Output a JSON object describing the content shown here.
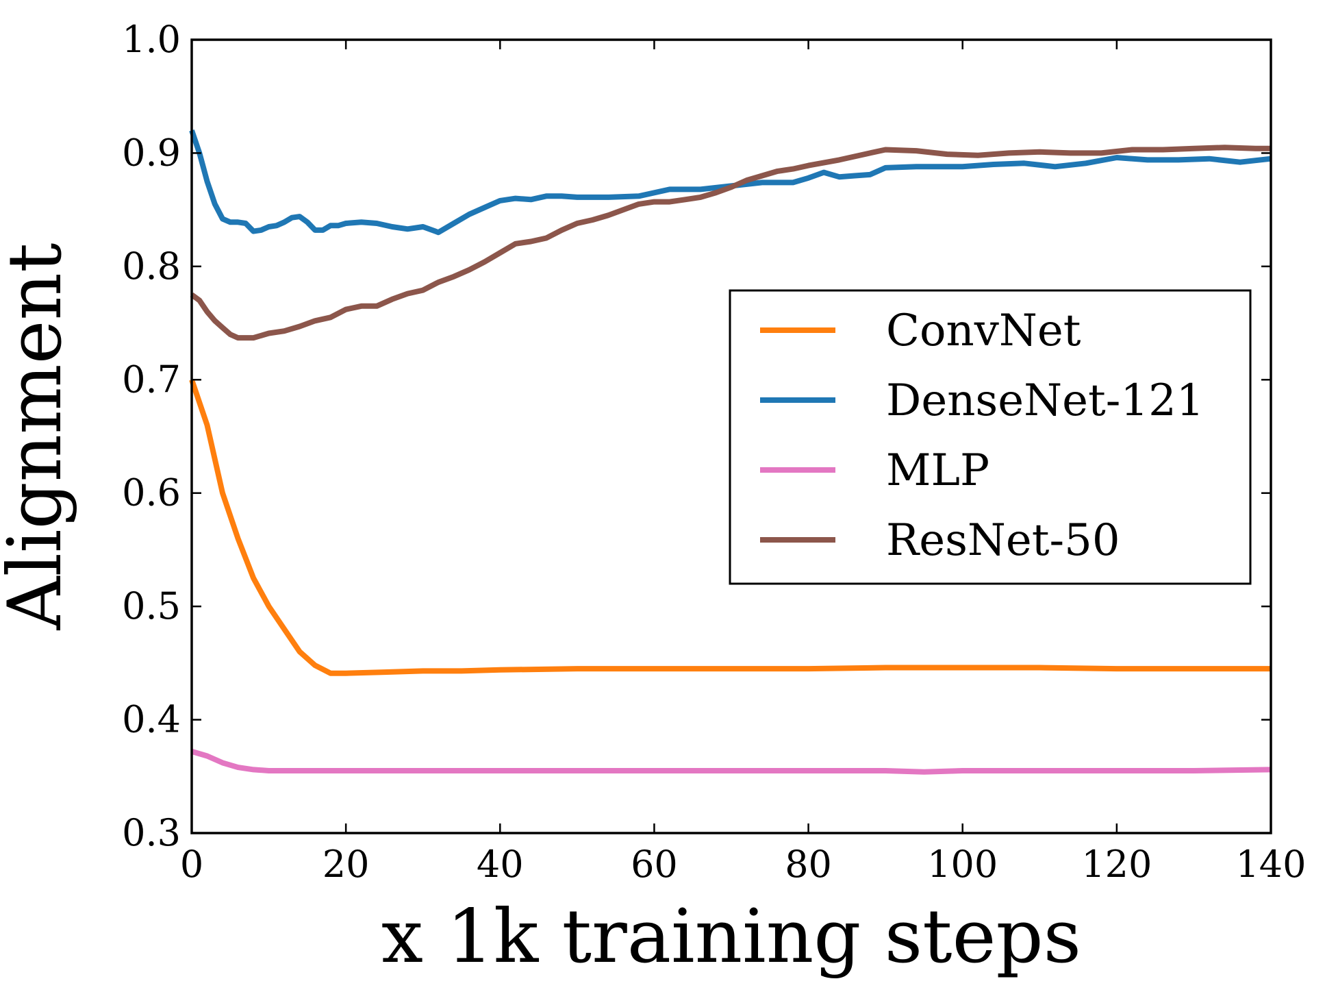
{
  "chart_data": {
    "type": "line",
    "title": "",
    "xlabel": "x 1k training steps",
    "ylabel": "Alignment",
    "xlim": [
      0,
      140
    ],
    "ylim": [
      0.3,
      1.0
    ],
    "xticks": [
      0,
      20,
      40,
      60,
      80,
      100,
      120,
      140
    ],
    "xtick_labels": [
      "0",
      "20",
      "40",
      "60",
      "80",
      "100",
      "120",
      "140"
    ],
    "yticks": [
      0.3,
      0.4,
      0.5,
      0.6,
      0.7,
      0.8,
      0.9,
      1.0
    ],
    "ytick_labels": [
      "0.3",
      "0.4",
      "0.5",
      "0.6",
      "0.7",
      "0.8",
      "0.9",
      "1.0"
    ],
    "grid": false,
    "legend_position": "center-right",
    "series": [
      {
        "name": "ConvNet",
        "color": "#ff7f0e",
        "x": [
          0,
          2,
          4,
          6,
          8,
          10,
          12,
          14,
          16,
          18,
          20,
          25,
          30,
          35,
          40,
          50,
          60,
          70,
          80,
          90,
          100,
          110,
          120,
          130,
          140
        ],
        "y": [
          0.7,
          0.66,
          0.6,
          0.56,
          0.525,
          0.5,
          0.48,
          0.46,
          0.448,
          0.441,
          0.441,
          0.442,
          0.443,
          0.443,
          0.444,
          0.445,
          0.445,
          0.445,
          0.445,
          0.446,
          0.446,
          0.446,
          0.445,
          0.445,
          0.445
        ]
      },
      {
        "name": "DenseNet-121",
        "color": "#1f77b4",
        "x": [
          0,
          1,
          2,
          3,
          4,
          5,
          6,
          7,
          8,
          9,
          10,
          11,
          12,
          13,
          14,
          15,
          16,
          17,
          18,
          19,
          20,
          22,
          24,
          26,
          28,
          30,
          32,
          34,
          36,
          38,
          40,
          42,
          44,
          46,
          48,
          50,
          54,
          58,
          62,
          66,
          70,
          74,
          78,
          80,
          82,
          84,
          86,
          88,
          90,
          94,
          98,
          100,
          104,
          108,
          112,
          116,
          120,
          124,
          128,
          132,
          136,
          140
        ],
        "y": [
          0.92,
          0.9,
          0.875,
          0.855,
          0.842,
          0.839,
          0.839,
          0.838,
          0.831,
          0.832,
          0.835,
          0.836,
          0.839,
          0.843,
          0.844,
          0.839,
          0.832,
          0.832,
          0.836,
          0.836,
          0.838,
          0.839,
          0.838,
          0.835,
          0.833,
          0.835,
          0.83,
          0.838,
          0.846,
          0.852,
          0.858,
          0.86,
          0.859,
          0.862,
          0.862,
          0.861,
          0.861,
          0.862,
          0.868,
          0.868,
          0.871,
          0.874,
          0.874,
          0.878,
          0.883,
          0.879,
          0.88,
          0.881,
          0.887,
          0.888,
          0.888,
          0.888,
          0.89,
          0.891,
          0.888,
          0.891,
          0.896,
          0.894,
          0.894,
          0.895,
          0.892,
          0.895
        ]
      },
      {
        "name": "MLP",
        "color": "#e377c2",
        "x": [
          0,
          2,
          4,
          6,
          8,
          10,
          15,
          20,
          30,
          40,
          50,
          60,
          70,
          80,
          90,
          95,
          100,
          110,
          120,
          130,
          140
        ],
        "y": [
          0.372,
          0.368,
          0.362,
          0.358,
          0.356,
          0.355,
          0.355,
          0.355,
          0.355,
          0.355,
          0.355,
          0.355,
          0.355,
          0.355,
          0.355,
          0.354,
          0.355,
          0.355,
          0.355,
          0.355,
          0.356
        ]
      },
      {
        "name": "ResNet-50",
        "color": "#8c564b",
        "x": [
          0,
          1,
          2,
          3,
          4,
          5,
          6,
          7,
          8,
          10,
          12,
          14,
          16,
          18,
          20,
          22,
          24,
          26,
          28,
          30,
          32,
          34,
          36,
          38,
          40,
          42,
          44,
          46,
          48,
          50,
          52,
          54,
          56,
          58,
          60,
          62,
          64,
          66,
          68,
          70,
          72,
          74,
          76,
          78,
          80,
          84,
          88,
          90,
          94,
          98,
          102,
          106,
          110,
          114,
          118,
          122,
          126,
          130,
          134,
          138,
          140
        ],
        "y": [
          0.775,
          0.77,
          0.76,
          0.752,
          0.746,
          0.74,
          0.737,
          0.737,
          0.737,
          0.741,
          0.743,
          0.747,
          0.752,
          0.755,
          0.762,
          0.765,
          0.765,
          0.771,
          0.776,
          0.779,
          0.786,
          0.791,
          0.797,
          0.804,
          0.812,
          0.82,
          0.822,
          0.825,
          0.832,
          0.838,
          0.841,
          0.845,
          0.85,
          0.855,
          0.857,
          0.857,
          0.859,
          0.861,
          0.865,
          0.87,
          0.876,
          0.88,
          0.884,
          0.886,
          0.889,
          0.894,
          0.9,
          0.903,
          0.902,
          0.899,
          0.898,
          0.9,
          0.901,
          0.9,
          0.9,
          0.903,
          0.903,
          0.904,
          0.905,
          0.904,
          0.904
        ]
      }
    ]
  }
}
